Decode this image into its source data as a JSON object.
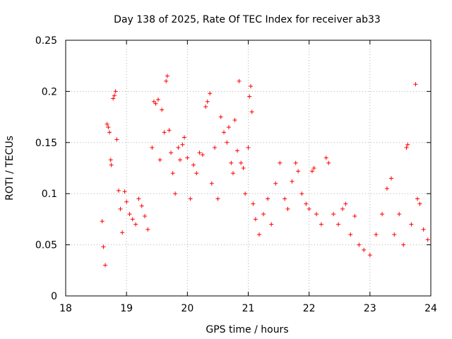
{
  "chart_data": {
    "type": "scatter",
    "title": "Day 138 of 2025, Rate Of TEC Index for receiver ab33",
    "xlabel": "GPS time / hours",
    "ylabel": "ROTI / TECUs",
    "xlim": [
      18,
      24
    ],
    "ylim": [
      0,
      0.25
    ],
    "x_ticks": [
      18,
      19,
      20,
      21,
      22,
      23,
      24
    ],
    "x_tick_labels": [
      "18",
      "19",
      "20",
      "21",
      "22",
      "23",
      "24"
    ],
    "y_ticks": [
      0,
      0.05,
      0.1,
      0.15,
      0.2,
      0.25
    ],
    "y_tick_labels": [
      "0",
      "0.05",
      "0.1",
      "0.15",
      "0.2",
      "0.25"
    ],
    "grid": true,
    "marker": "+",
    "color": "#ff0000",
    "points": [
      [
        18.6,
        0.073
      ],
      [
        18.62,
        0.048
      ],
      [
        18.65,
        0.03
      ],
      [
        18.68,
        0.168
      ],
      [
        18.7,
        0.165
      ],
      [
        18.72,
        0.16
      ],
      [
        18.74,
        0.133
      ],
      [
        18.75,
        0.128
      ],
      [
        18.78,
        0.193
      ],
      [
        18.8,
        0.196
      ],
      [
        18.82,
        0.2
      ],
      [
        18.84,
        0.153
      ],
      [
        18.87,
        0.103
      ],
      [
        18.9,
        0.085
      ],
      [
        18.93,
        0.062
      ],
      [
        18.97,
        0.102
      ],
      [
        19.0,
        0.092
      ],
      [
        19.05,
        0.08
      ],
      [
        19.1,
        0.075
      ],
      [
        19.15,
        0.07
      ],
      [
        19.2,
        0.095
      ],
      [
        19.25,
        0.088
      ],
      [
        19.3,
        0.078
      ],
      [
        19.35,
        0.065
      ],
      [
        19.42,
        0.145
      ],
      [
        19.45,
        0.19
      ],
      [
        19.48,
        0.188
      ],
      [
        19.52,
        0.192
      ],
      [
        19.55,
        0.133
      ],
      [
        19.58,
        0.182
      ],
      [
        19.62,
        0.16
      ],
      [
        19.65,
        0.21
      ],
      [
        19.67,
        0.215
      ],
      [
        19.7,
        0.162
      ],
      [
        19.73,
        0.14
      ],
      [
        19.76,
        0.12
      ],
      [
        19.8,
        0.1
      ],
      [
        19.85,
        0.145
      ],
      [
        19.88,
        0.133
      ],
      [
        19.92,
        0.148
      ],
      [
        19.95,
        0.155
      ],
      [
        20.0,
        0.135
      ],
      [
        20.05,
        0.095
      ],
      [
        20.1,
        0.128
      ],
      [
        20.15,
        0.12
      ],
      [
        20.2,
        0.14
      ],
      [
        20.25,
        0.138
      ],
      [
        20.3,
        0.185
      ],
      [
        20.33,
        0.19
      ],
      [
        20.37,
        0.198
      ],
      [
        20.4,
        0.11
      ],
      [
        20.45,
        0.145
      ],
      [
        20.5,
        0.095
      ],
      [
        20.55,
        0.175
      ],
      [
        20.6,
        0.16
      ],
      [
        20.65,
        0.15
      ],
      [
        20.68,
        0.165
      ],
      [
        20.72,
        0.13
      ],
      [
        20.75,
        0.12
      ],
      [
        20.78,
        0.172
      ],
      [
        20.82,
        0.142
      ],
      [
        20.85,
        0.21
      ],
      [
        20.88,
        0.13
      ],
      [
        20.92,
        0.125
      ],
      [
        20.95,
        0.1
      ],
      [
        21.0,
        0.145
      ],
      [
        21.02,
        0.195
      ],
      [
        21.04,
        0.205
      ],
      [
        21.06,
        0.18
      ],
      [
        21.08,
        0.09
      ],
      [
        21.12,
        0.075
      ],
      [
        21.18,
        0.06
      ],
      [
        21.25,
        0.08
      ],
      [
        21.32,
        0.095
      ],
      [
        21.38,
        0.07
      ],
      [
        21.45,
        0.11
      ],
      [
        21.52,
        0.13
      ],
      [
        21.6,
        0.095
      ],
      [
        21.65,
        0.085
      ],
      [
        21.72,
        0.112
      ],
      [
        21.78,
        0.13
      ],
      [
        21.82,
        0.122
      ],
      [
        21.88,
        0.1
      ],
      [
        21.95,
        0.09
      ],
      [
        22.0,
        0.085
      ],
      [
        22.05,
        0.122
      ],
      [
        22.08,
        0.125
      ],
      [
        22.12,
        0.08
      ],
      [
        22.2,
        0.07
      ],
      [
        22.28,
        0.135
      ],
      [
        22.32,
        0.13
      ],
      [
        22.4,
        0.08
      ],
      [
        22.48,
        0.07
      ],
      [
        22.55,
        0.085
      ],
      [
        22.6,
        0.09
      ],
      [
        22.68,
        0.06
      ],
      [
        22.75,
        0.078
      ],
      [
        22.82,
        0.05
      ],
      [
        22.9,
        0.045
      ],
      [
        23.0,
        0.04
      ],
      [
        23.1,
        0.06
      ],
      [
        23.2,
        0.08
      ],
      [
        23.28,
        0.105
      ],
      [
        23.35,
        0.115
      ],
      [
        23.4,
        0.06
      ],
      [
        23.48,
        0.08
      ],
      [
        23.55,
        0.05
      ],
      [
        23.6,
        0.145
      ],
      [
        23.62,
        0.148
      ],
      [
        23.68,
        0.07
      ],
      [
        23.75,
        0.207
      ],
      [
        23.78,
        0.095
      ],
      [
        23.82,
        0.09
      ],
      [
        23.88,
        0.065
      ],
      [
        23.95,
        0.055
      ]
    ]
  }
}
